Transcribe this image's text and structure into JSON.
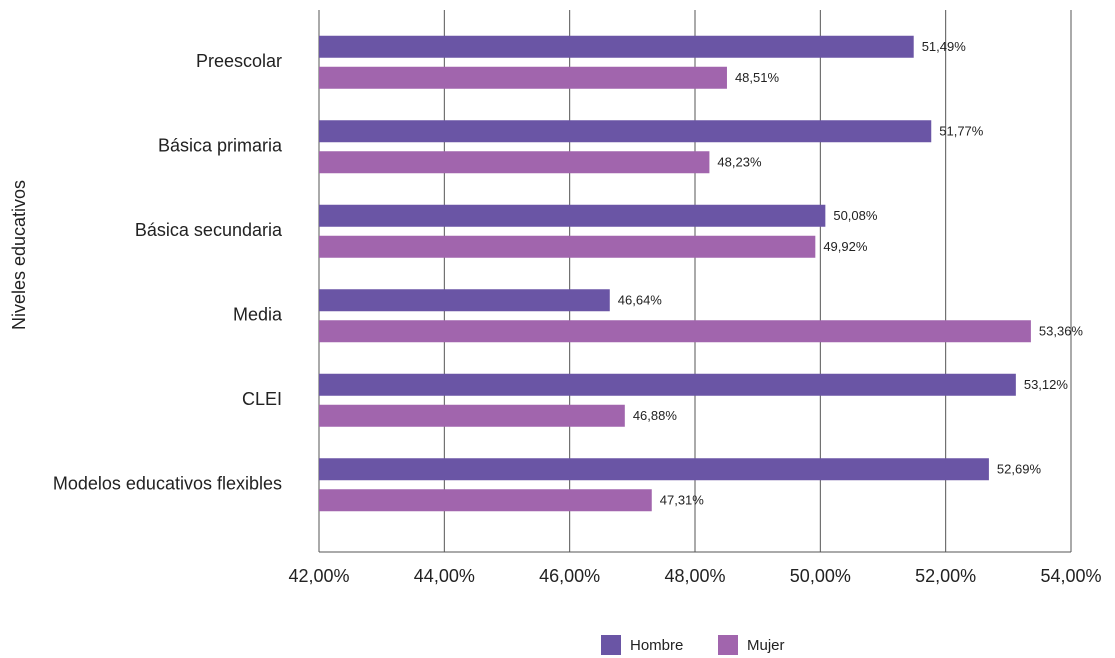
{
  "chart_data": {
    "type": "bar",
    "orientation": "horizontal",
    "y_label": "Niveles educativos",
    "categories": [
      "Preescolar",
      "Básica primaria",
      "Básica secundaria",
      "Media",
      "CLEI",
      "Modelos educativos flexibles"
    ],
    "series": [
      {
        "name": "Hombre",
        "color": "#6a55a5",
        "values": [
          51.49,
          51.77,
          50.08,
          46.64,
          53.12,
          52.69
        ],
        "value_labels": [
          "51,49%",
          "51,77%",
          "50,08%",
          "46,64%",
          "53,12%",
          "52,69%"
        ]
      },
      {
        "name": "Mujer",
        "color": "#a165ad",
        "values": [
          48.51,
          48.23,
          49.92,
          53.36,
          46.88,
          47.31
        ],
        "value_labels": [
          "48,51%",
          "48,23%",
          "49,92%",
          "53,36%",
          "46,88%",
          "47,31%"
        ]
      }
    ],
    "xlim": [
      42,
      54
    ],
    "xticks": [
      {
        "value": 42,
        "label": "42,00%"
      },
      {
        "value": 44,
        "label": "44,00%"
      },
      {
        "value": 46,
        "label": "46,00%"
      },
      {
        "value": 48,
        "label": "48,00%"
      },
      {
        "value": 50,
        "label": "50,00%"
      },
      {
        "value": 52,
        "label": "52,00%"
      },
      {
        "value": 54,
        "label": "54,00%"
      }
    ],
    "grid": true,
    "legend": "bottom"
  }
}
